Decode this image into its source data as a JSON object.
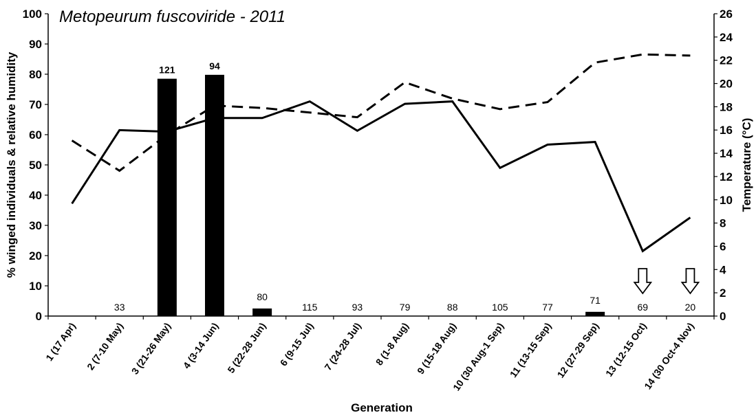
{
  "chart_data": {
    "type": "bar",
    "title": "Metopeurum fuscoviride - 2011",
    "xlabel": "Generation",
    "ylabel": "% winged individuals & relative humidity",
    "y2label": "Temperature (°C)",
    "ylim": [
      0,
      100
    ],
    "yticks": [
      0,
      10,
      20,
      30,
      40,
      50,
      60,
      70,
      80,
      90,
      100
    ],
    "y2lim": [
      0,
      26
    ],
    "y2ticks": [
      0,
      2,
      4,
      6,
      8,
      10,
      12,
      14,
      16,
      18,
      20,
      22,
      24,
      26
    ],
    "grid": false,
    "categories": [
      "1 (17 Apr)",
      "2 (7-10 May)",
      "3 (21-26 May)",
      "4 (3-14 Jun)",
      "5 (22-28 Jun)",
      "6 (9-15 Jul)",
      "7 (24-28 Jul)",
      "8 (1-8 Aug)",
      "9 (15-18 Aug)",
      "10 (30 Aug-1 Sep)",
      "11 (13-15 Sep)",
      "12 (27-29 Sep)",
      "13 (12-15 Oct)",
      "14 (30 Oct-4 Nov)"
    ],
    "series": [
      {
        "kind": "bar",
        "axis": "left",
        "color": "#000000",
        "values": [
          0,
          0,
          78.5,
          79.8,
          2.5,
          0,
          0,
          0,
          0,
          0,
          0,
          1.4,
          0,
          0
        ]
      },
      {
        "kind": "line",
        "style": "solid",
        "axis": "left",
        "color": "#000000",
        "values": [
          37.2,
          61.5,
          61.0,
          65.5,
          65.5,
          71.0,
          61.3,
          70.2,
          71.0,
          49.0,
          56.7,
          57.6,
          21.5,
          32.6
        ]
      },
      {
        "kind": "line",
        "style": "dashed",
        "axis": "right",
        "color": "#000000",
        "values": [
          15.1,
          12.5,
          15.6,
          18.1,
          17.9,
          17.5,
          17.1,
          20.1,
          18.7,
          17.8,
          18.4,
          21.8,
          22.5,
          22.4
        ]
      }
    ],
    "sample_sizes": [
      "",
      "33",
      "121",
      "94",
      "80",
      "115",
      "93",
      "79",
      "88",
      "105",
      "77",
      "71",
      "69",
      "20"
    ],
    "arrow_categories": [
      12,
      13
    ]
  }
}
